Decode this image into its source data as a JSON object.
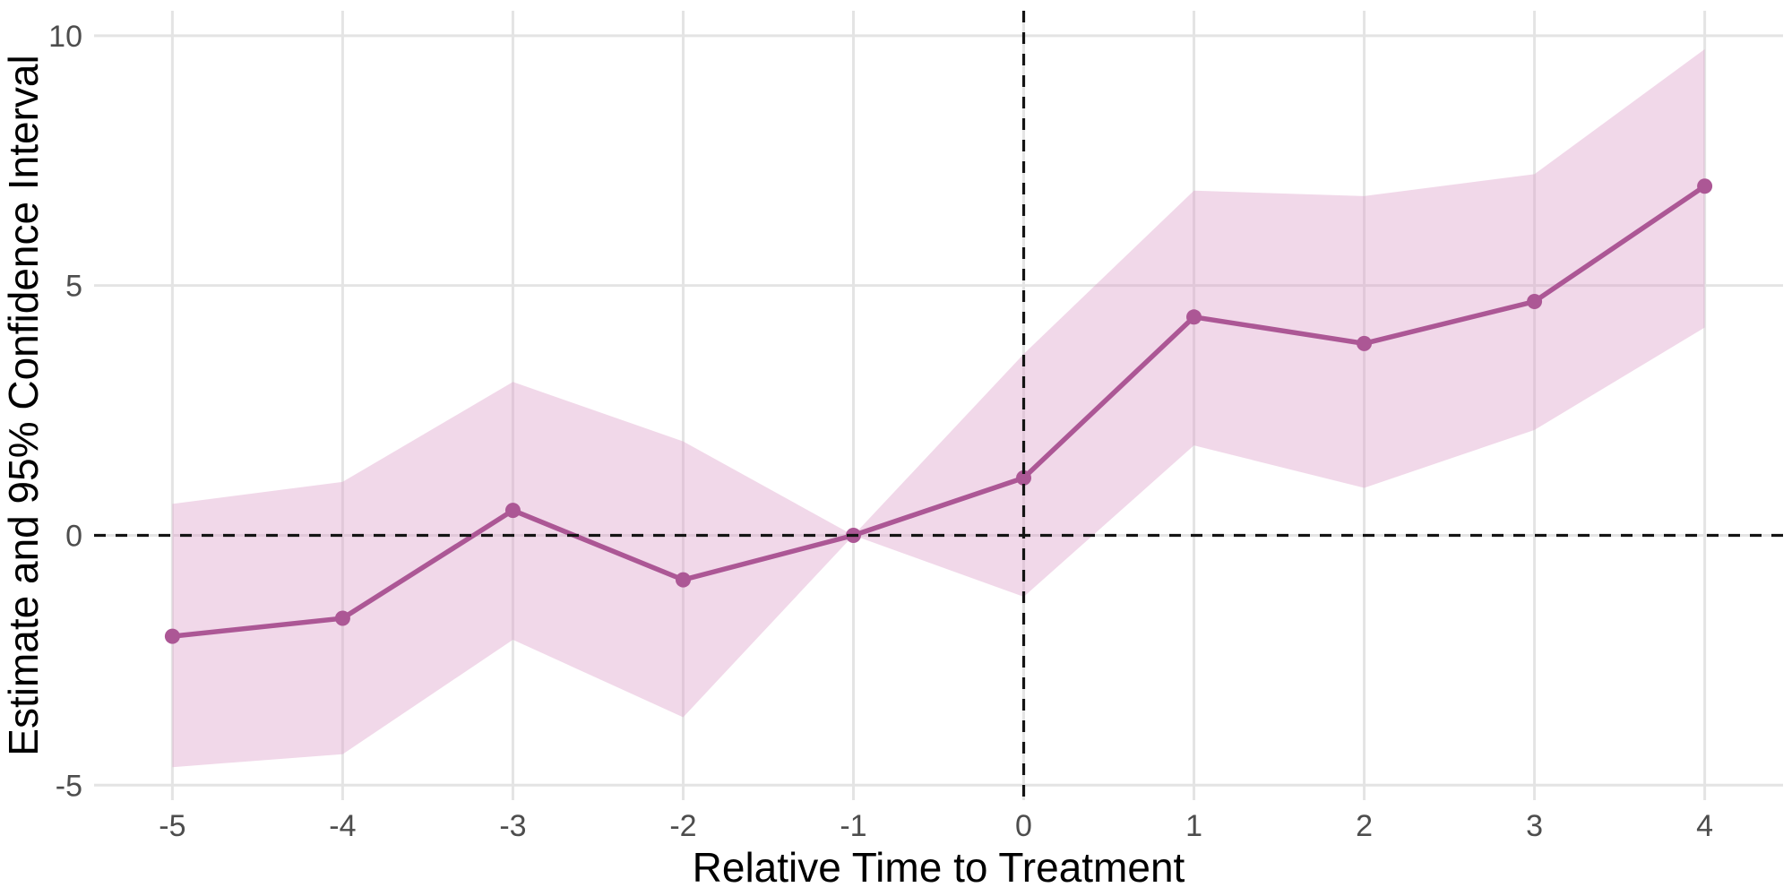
{
  "chart_data": {
    "type": "line",
    "subtype": "event-study estimate with 95% confidence ribbon",
    "title": "",
    "xlabel": "Relative Time to Treatment",
    "ylabel": "Estimate and 95% Confidence Interval",
    "x": [
      -5,
      -4,
      -3,
      -2,
      -1,
      0,
      1,
      2,
      3,
      4
    ],
    "series": [
      {
        "name": "estimate",
        "values": [
          -2.02,
          -1.66,
          0.5,
          -0.89,
          0.0,
          1.15,
          4.37,
          3.84,
          4.68,
          6.99
        ]
      },
      {
        "name": "ci_lower",
        "values": [
          -4.64,
          -4.38,
          -2.09,
          -3.64,
          0.0,
          -1.23,
          1.8,
          0.95,
          2.11,
          4.16
        ]
      },
      {
        "name": "ci_upper",
        "values": [
          0.63,
          1.07,
          3.07,
          1.88,
          0.0,
          3.63,
          6.9,
          6.79,
          7.23,
          9.73
        ]
      }
    ],
    "x_ticks": [
      "-5",
      "-4",
      "-3",
      "-2",
      "-1",
      "0",
      "1",
      "2",
      "3",
      "4"
    ],
    "x_tick_values": [
      -5,
      -4,
      -3,
      -2,
      -1,
      0,
      1,
      2,
      3,
      4
    ],
    "y_ticks": [
      "-5",
      "0",
      "5",
      "10"
    ],
    "y_tick_values": [
      -5,
      0,
      5,
      10
    ],
    "xlim": [
      -5.46,
      4.46
    ],
    "ylim": [
      -5.3,
      10.5
    ],
    "grid": "major gridlines only, light gray, no axis lines, no tick marks",
    "legend": "none",
    "reference_lines": {
      "horizontal_y": 0,
      "vertical_x": 0,
      "style": "black dashed"
    },
    "colors": {
      "line": "#AC5795",
      "point": "#AC5795",
      "ribbon_fill": "#DDA3CA",
      "ribbon_opacity": 0.42,
      "gridline": "#E4E4E4",
      "tick_label": "#4D4D4D",
      "axis_title": "#000000",
      "reference_line": "#141414",
      "background": "#FFFFFF"
    }
  }
}
